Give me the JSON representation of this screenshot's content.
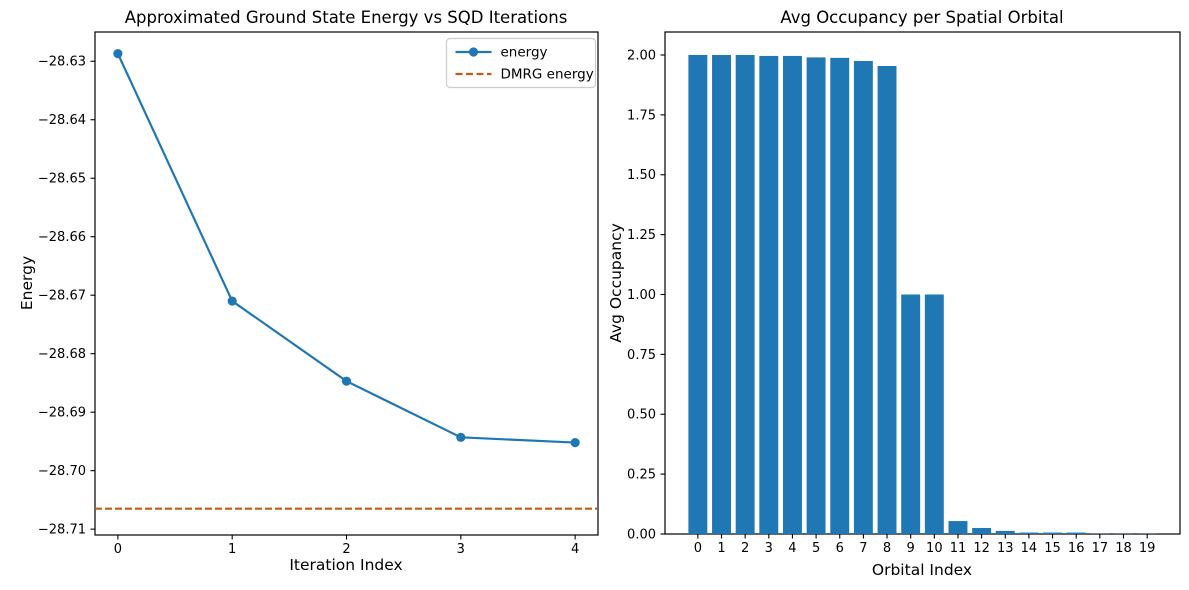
{
  "page": {
    "background": "#ffffff",
    "accent_blue": "#1f77b4",
    "accent_orange": "#c55a11"
  },
  "chart_data": [
    {
      "type": "line",
      "title": "Approximated Ground State Energy vs SQD Iterations",
      "xlabel": "Iteration Index",
      "ylabel": "Energy",
      "x": [
        0,
        1,
        2,
        3,
        4
      ],
      "series": [
        {
          "name": "energy",
          "color": "#1f77b4",
          "marker": "circle",
          "values": [
            -28.6287,
            -28.671,
            -28.6847,
            -28.6943,
            -28.6952
          ]
        }
      ],
      "reference_line": {
        "name": "DMRG energy",
        "value": -28.7065,
        "color": "#c55a11",
        "style": "dashed"
      },
      "xlim": [
        -0.2,
        4.2
      ],
      "ylim": [
        -28.711,
        -28.625
      ],
      "xticks": [
        0,
        1,
        2,
        3,
        4
      ],
      "yticks": [
        -28.71,
        -28.7,
        -28.69,
        -28.68,
        -28.67,
        -28.66,
        -28.65,
        -28.64,
        -28.63
      ],
      "grid": false,
      "legend": {
        "position": "upper right",
        "entries": [
          {
            "label": "energy",
            "symbol": "line-marker",
            "color": "#1f77b4"
          },
          {
            "label": "DMRG energy",
            "symbol": "dashed-line",
            "color": "#c55a11"
          }
        ]
      }
    },
    {
      "type": "bar",
      "title": "Avg Occupancy per Spatial Orbital",
      "xlabel": "Orbital Index",
      "ylabel": "Avg Occupancy",
      "categories": [
        "0",
        "1",
        "2",
        "3",
        "4",
        "5",
        "6",
        "7",
        "8",
        "9",
        "10",
        "11",
        "12",
        "13",
        "14",
        "15",
        "16",
        "17",
        "18",
        "19"
      ],
      "values": [
        2.0,
        2.0,
        2.0,
        1.996,
        1.996,
        1.99,
        1.988,
        1.975,
        1.954,
        1.0,
        1.0,
        0.054,
        0.025,
        0.013,
        0.006,
        0.006,
        0.006,
        0.001,
        0.001,
        0.001
      ],
      "color": "#1f77b4",
      "bar_width": 0.8,
      "xlim": [
        -1.39,
        20.39
      ],
      "ylim": [
        0,
        2.096
      ],
      "yticks": [
        0.0,
        0.25,
        0.5,
        0.75,
        1.0,
        1.25,
        1.5,
        1.75,
        2.0
      ],
      "grid": false,
      "legend": null
    }
  ]
}
